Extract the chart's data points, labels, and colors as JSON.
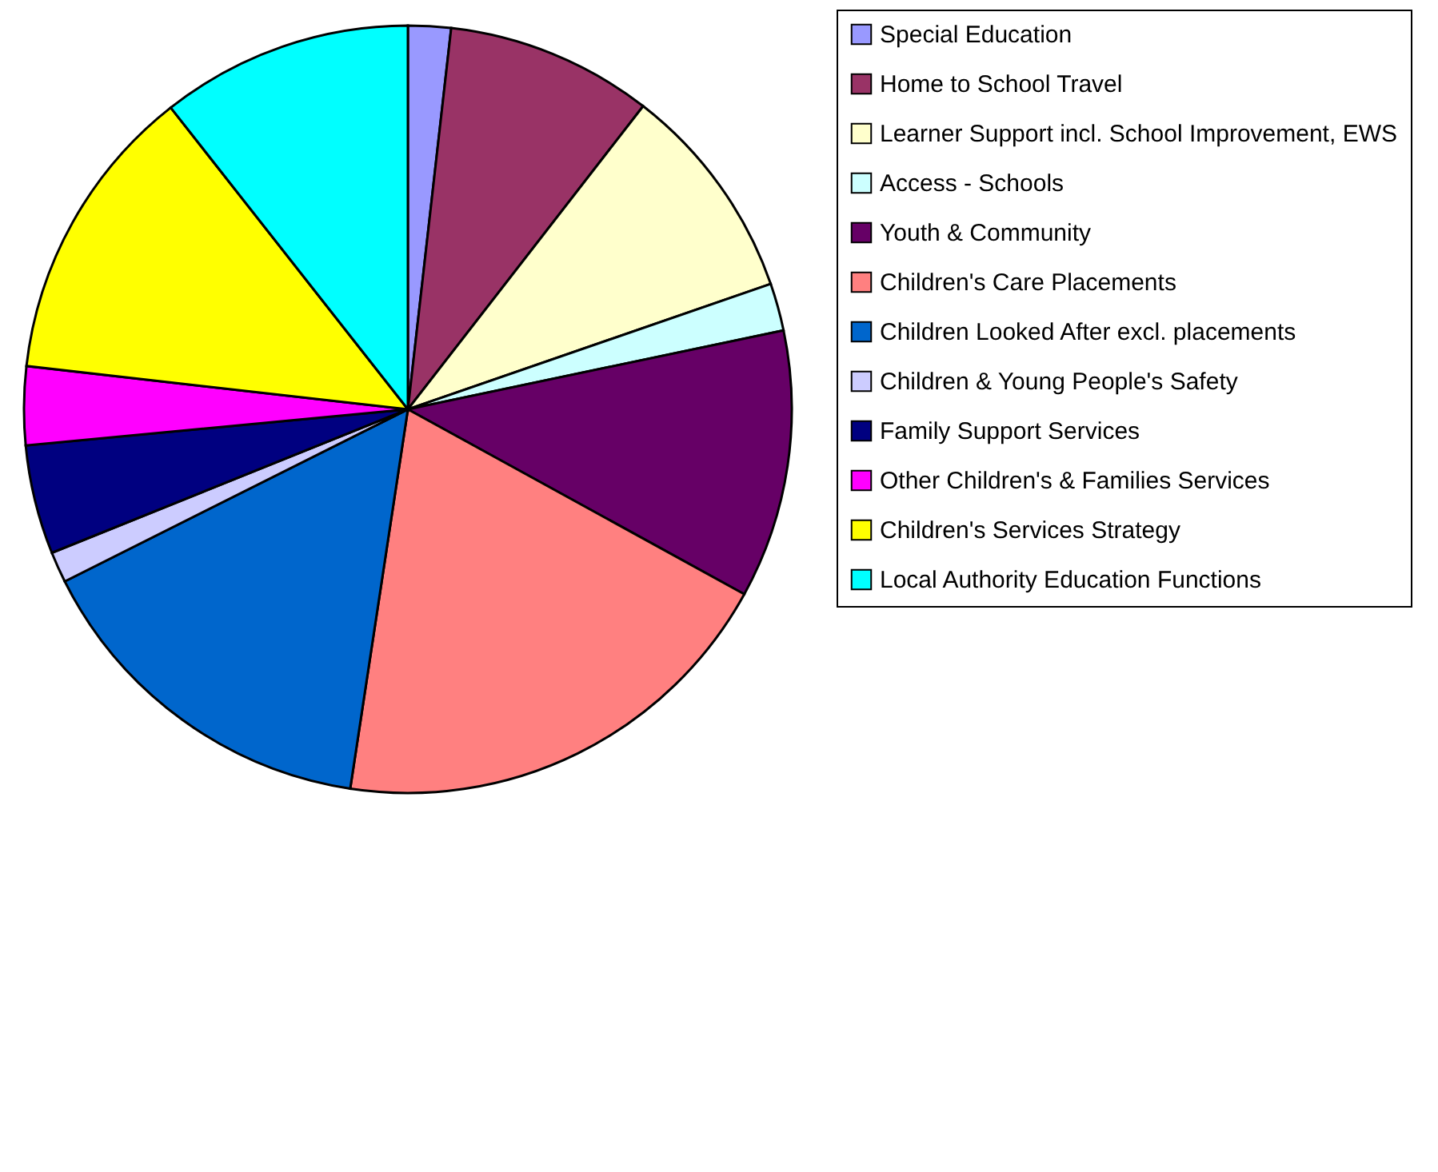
{
  "chart_data": {
    "type": "pie",
    "legend": "right",
    "categories": [
      "Special Education",
      "Home to School Travel",
      "Learner Support incl. School Improvement, EWS",
      "Access  - Schools",
      "Youth & Community",
      "Children's Care Placements",
      "Children Looked After excl. placements",
      "Children & Young People's Safety",
      "Family Support Services",
      "Other Children's & Families Services",
      "Children's Services Strategy",
      "Local Authority Education Functions"
    ],
    "values": [
      1.8,
      8.7,
      9.2,
      2.0,
      11.3,
      19.4,
      15.2,
      1.3,
      4.6,
      3.3,
      12.6,
      10.6
    ],
    "colors": [
      "#9999ff",
      "#993366",
      "#ffffcc",
      "#ccffff",
      "#660066",
      "#ff8080",
      "#0066cc",
      "#ccccff",
      "#000080",
      "#ff00ff",
      "#ffff00",
      "#00ffff"
    ]
  }
}
